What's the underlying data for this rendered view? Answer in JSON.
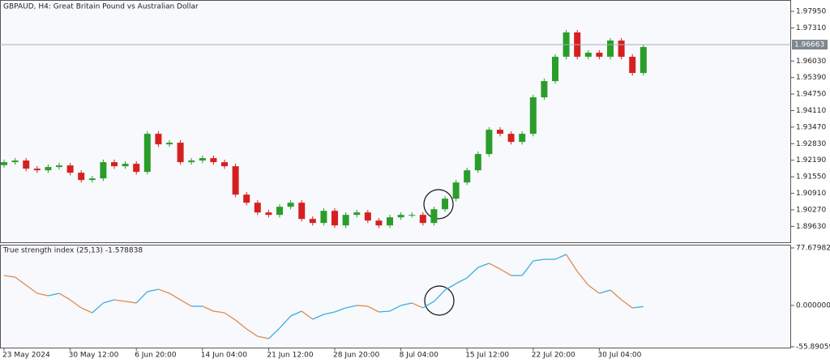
{
  "chart_data": [
    {
      "type": "candlestick",
      "title": "GBPAUD, H4:  Great Britain Pound vs Australian Dollar",
      "categories": [
        "23 May 2024",
        null,
        null,
        null,
        null,
        null,
        "30 May 12:00",
        null,
        null,
        null,
        null,
        null,
        "6 Jun 20:00",
        null,
        null,
        null,
        null,
        null,
        "14 Jun 04:00",
        null,
        null,
        null,
        null,
        null,
        "21 Jun 12:00",
        null,
        null,
        null,
        null,
        null,
        "28 Jun 20:00",
        null,
        null,
        null,
        null,
        null,
        "8 Jul 04:00",
        null,
        null,
        null,
        null,
        null,
        "15 Jul 12:00",
        null,
        null,
        null,
        null,
        null,
        "22 Jul 20:00",
        null,
        null,
        null,
        null,
        null,
        "30 Jul 04:00",
        null,
        null,
        null,
        null
      ],
      "open": [
        1.92,
        1.92115,
        1.92178,
        1.91864,
        1.91801,
        1.91927,
        1.91989,
        1.91707,
        1.91425,
        1.91487,
        1.92115,
        1.91958,
        1.92052,
        1.91738,
        1.93213,
        1.92805,
        1.92868,
        1.92115,
        1.92178,
        1.92272,
        1.92115,
        1.91958,
        1.9086,
        1.90546,
        1.9017,
        1.90076,
        1.90389,
        1.90546,
        1.89919,
        1.89762,
        1.90232,
        1.89668,
        1.90076,
        1.9017,
        1.89856,
        1.89668,
        1.89981,
        1.90076,
        1.90076,
        1.89762,
        1.90295,
        1.90703,
        1.9133,
        1.91801,
        1.92429,
        1.9337,
        1.93213,
        1.92899,
        1.93213,
        1.94625,
        1.95252,
        1.96193,
        1.97135,
        1.96193,
        1.9635,
        1.96193,
        1.96821,
        1.96193,
        1.95566
      ],
      "high": [
        1.92215,
        1.92278,
        1.92278,
        1.91964,
        1.92027,
        1.92089,
        1.92089,
        1.91807,
        1.91587,
        1.92215,
        1.92215,
        1.92152,
        1.92152,
        1.93313,
        1.93313,
        1.92968,
        1.92968,
        1.92278,
        1.92372,
        1.92372,
        1.92215,
        1.92058,
        1.9096,
        1.90646,
        1.9027,
        1.90489,
        1.90646,
        1.90646,
        1.90019,
        1.90332,
        1.90332,
        1.90176,
        1.9027,
        1.9027,
        1.89956,
        1.90081,
        1.90176,
        1.90176,
        1.90176,
        1.90395,
        1.90803,
        1.9143,
        1.91901,
        1.92529,
        1.9347,
        1.9347,
        1.93313,
        1.93313,
        1.94725,
        1.95352,
        1.96293,
        1.97235,
        1.97235,
        1.9645,
        1.9645,
        1.96921,
        1.96921,
        1.96293,
        1.9667
      ],
      "low": [
        1.919,
        1.92015,
        1.91764,
        1.91701,
        1.91701,
        1.91827,
        1.91607,
        1.91325,
        1.91325,
        1.91387,
        1.91858,
        1.91858,
        1.91638,
        1.91638,
        1.92705,
        1.92705,
        1.92015,
        1.92015,
        1.92078,
        1.92015,
        1.91858,
        1.9076,
        1.90446,
        1.9007,
        1.89976,
        1.89976,
        1.90289,
        1.89819,
        1.89662,
        1.89662,
        1.89568,
        1.89568,
        1.89976,
        1.89756,
        1.89568,
        1.89568,
        1.89881,
        1.89976,
        1.89662,
        1.89662,
        1.90195,
        1.90603,
        1.9123,
        1.91701,
        1.92329,
        1.93113,
        1.92799,
        1.92799,
        1.93113,
        1.94525,
        1.95152,
        1.96093,
        1.96093,
        1.96093,
        1.96093,
        1.96093,
        1.96093,
        1.95466,
        1.95466
      ],
      "close": [
        1.92115,
        1.92178,
        1.91864,
        1.91801,
        1.91927,
        1.91989,
        1.91707,
        1.91425,
        1.91487,
        1.92115,
        1.91958,
        1.92052,
        1.91738,
        1.93213,
        1.92805,
        1.92868,
        1.92115,
        1.92178,
        1.92272,
        1.92115,
        1.91958,
        1.9086,
        1.90546,
        1.9017,
        1.90076,
        1.90389,
        1.90546,
        1.89919,
        1.89762,
        1.90232,
        1.89668,
        1.90076,
        1.9017,
        1.89856,
        1.89668,
        1.89981,
        1.90076,
        1.90076,
        1.89762,
        1.90295,
        1.90703,
        1.9133,
        1.91801,
        1.92429,
        1.9337,
        1.93213,
        1.92899,
        1.93213,
        1.94625,
        1.95252,
        1.96193,
        1.97135,
        1.96193,
        1.9635,
        1.96193,
        1.96821,
        1.96193,
        1.95566,
        1.9657
      ],
      "up_color": "#2a9d2a",
      "down_color": "#d62020",
      "ylim": [
        1.88984,
        1.98358
      ],
      "yticks": [
        {
          "value": 1.9795,
          "label": "1.97950"
        },
        {
          "value": 1.9731,
          "label": "1.97310"
        },
        {
          "value": 1.9603,
          "label": "1.96030"
        },
        {
          "value": 1.9539,
          "label": "1.95390"
        },
        {
          "value": 1.9475,
          "label": "1.94750"
        },
        {
          "value": 1.9411,
          "label": "1.94110"
        },
        {
          "value": 1.9347,
          "label": "1.93470"
        },
        {
          "value": 1.9283,
          "label": "1.92830"
        },
        {
          "value": 1.9219,
          "label": "1.92190"
        },
        {
          "value": 1.9155,
          "label": "1.91550"
        },
        {
          "value": 1.9091,
          "label": "1.90910"
        },
        {
          "value": 1.9027,
          "label": "1.90270"
        },
        {
          "value": 1.8963,
          "label": "1.89630"
        }
      ],
      "current_price": {
        "value": 1.96663,
        "label": "1.96663"
      }
    },
    {
      "type": "line",
      "title": "True strength index (25,13) -1.578838",
      "values": [
        40.45,
        38.3,
        27.3,
        16.4,
        13.1,
        16.4,
        7.6,
        -3.3,
        -9.9,
        3.3,
        7.6,
        5.4,
        3.3,
        18.6,
        21.9,
        16.4,
        7.6,
        -1.1,
        -1.1,
        -7.7,
        -9.9,
        -19.8,
        -31.8,
        -41.7,
        -44.9,
        -30.7,
        -14.3,
        -7.7,
        -18.7,
        -12.1,
        -8.8,
        -3.3,
        0,
        -1.1,
        -8.8,
        -7.7,
        0,
        3.3,
        -3.3,
        5.4,
        20.7,
        29.5,
        37.2,
        51.4,
        56.9,
        49.2,
        40.4,
        40.4,
        60.2,
        62.4,
        62.4,
        68.9,
        45.9,
        27.3,
        16.4,
        20.7,
        7.6,
        -3.3,
        -1.58
      ],
      "up_color": "#3aaee0",
      "down_color": "#e08a50",
      "ylim": [
        -55.890598,
        77.679829
      ],
      "yticks": [
        77.679829,
        {
          "value": 0,
          "label": "0.000000"
        },
        -55.890598
      ]
    }
  ]
}
